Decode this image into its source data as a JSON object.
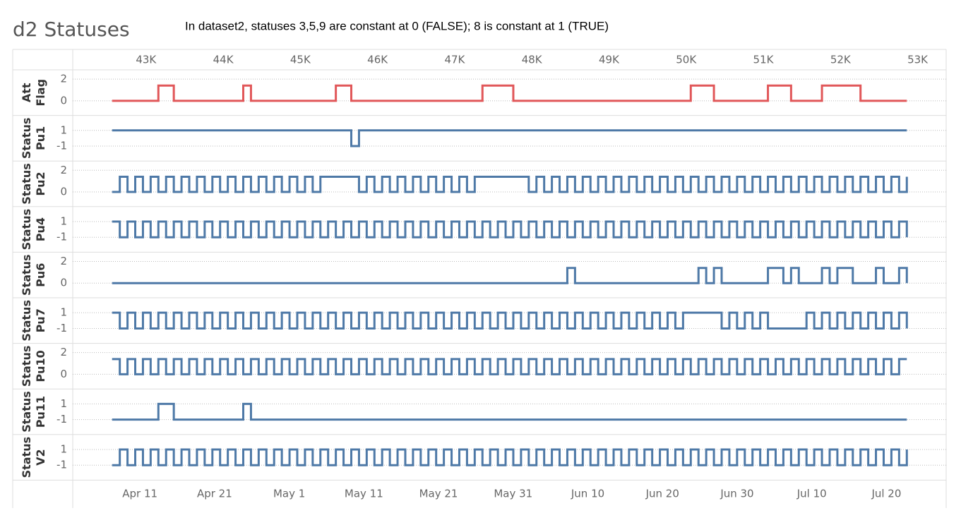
{
  "chart_data": {
    "type": "step",
    "title": "d2 Statuses",
    "annotation": "In dataset2,    statuses 3,5,9 are constant at 0 (FALSE);   8 is constant at 1 (TRUE)",
    "xlim": [
      42050,
      53370
    ],
    "xticks": [
      {
        "value": 43000,
        "label": "43K"
      },
      {
        "value": 44000,
        "label": "44K"
      },
      {
        "value": 45000,
        "label": "45K"
      },
      {
        "value": 46000,
        "label": "46K"
      },
      {
        "value": 47000,
        "label": "47K"
      },
      {
        "value": 48000,
        "label": "48K"
      },
      {
        "value": 49000,
        "label": "49K"
      },
      {
        "value": 50000,
        "label": "50K"
      },
      {
        "value": 51000,
        "label": "51K"
      },
      {
        "value": 52000,
        "label": "52K"
      },
      {
        "value": 53000,
        "label": "53K"
      }
    ],
    "x2lim": [
      "Apr 2",
      "Jul 28"
    ],
    "x2ticks": [
      "Apr 11",
      "Apr 21",
      "May 1",
      "May 11",
      "May 21",
      "May 31",
      "Jun 10",
      "Jun 20",
      "Jun 30",
      "Jul 10",
      "Jul 20"
    ],
    "x": [
      42560,
      42660,
      42760,
      42860,
      42960,
      43060,
      43160,
      43260,
      43360,
      43460,
      43560,
      43660,
      43760,
      43860,
      43960,
      44060,
      44160,
      44260,
      44360,
      44460,
      44560,
      44660,
      44760,
      44860,
      44960,
      45060,
      45160,
      45260,
      45360,
      45460,
      45560,
      45660,
      45760,
      45860,
      45960,
      46060,
      46160,
      46260,
      46360,
      46460,
      46560,
      46660,
      46760,
      46860,
      46960,
      47060,
      47160,
      47260,
      47360,
      47460,
      47560,
      47660,
      47760,
      47860,
      47960,
      48060,
      48160,
      48260,
      48360,
      48460,
      48560,
      48660,
      48760,
      48860,
      48960,
      49060,
      49160,
      49260,
      49360,
      49460,
      49560,
      49660,
      49760,
      49860,
      49960,
      50060,
      50160,
      50260,
      50360,
      50460,
      50560,
      50660,
      50760,
      50860,
      50960,
      51060,
      51160,
      51260,
      51360,
      51460,
      51560,
      51660,
      51760,
      51860,
      51960,
      52060,
      52160,
      52260,
      52360,
      52460,
      52560,
      52660,
      52760,
      52860
    ],
    "series": [
      {
        "name": "Att Flag",
        "color": "#e15759",
        "ylim": [
          -1.35,
          2.85
        ],
        "yticks": [
          0,
          2
        ],
        "values": [
          0,
          0,
          0,
          0,
          0,
          0,
          1.4,
          1.4,
          0,
          0,
          0,
          0,
          0,
          0,
          0,
          0,
          0,
          1.4,
          0,
          0,
          0,
          0,
          0,
          0,
          0,
          0,
          0,
          0,
          0,
          1.4,
          1.4,
          0,
          0,
          0,
          0,
          0,
          0,
          0,
          0,
          0,
          0,
          0,
          0,
          0,
          0,
          0,
          0,
          0,
          1.4,
          1.4,
          1.4,
          1.4,
          0,
          0,
          0,
          0,
          0,
          0,
          0,
          0,
          0,
          0,
          0,
          0,
          0,
          0,
          0,
          0,
          0,
          0,
          0,
          0,
          0,
          0,
          0,
          1.4,
          1.4,
          1.4,
          0,
          0,
          0,
          0,
          0,
          0,
          0,
          1.4,
          1.4,
          1.4,
          0,
          0,
          0,
          0,
          1.4,
          1.4,
          1.4,
          1.4,
          1.4,
          0,
          0,
          0,
          0,
          0,
          0,
          0
        ]
      },
      {
        "name": "Status Pu1",
        "color": "#4e79a7",
        "ylim": [
          -2.9,
          2.9
        ],
        "yticks": [
          1,
          -1
        ],
        "values": [
          1,
          1,
          1,
          1,
          1,
          1,
          1,
          1,
          1,
          1,
          1,
          1,
          1,
          1,
          1,
          1,
          1,
          1,
          1,
          1,
          1,
          1,
          1,
          1,
          1,
          1,
          1,
          1,
          1,
          1,
          1,
          -1,
          1,
          1,
          1,
          1,
          1,
          1,
          1,
          1,
          1,
          1,
          1,
          1,
          1,
          1,
          1,
          1,
          1,
          1,
          1,
          1,
          1,
          1,
          1,
          1,
          1,
          1,
          1,
          1,
          1,
          1,
          1,
          1,
          1,
          1,
          1,
          1,
          1,
          1,
          1,
          1,
          1,
          1,
          1,
          1,
          1,
          1,
          1,
          1,
          1,
          1,
          1,
          1,
          1,
          1,
          1,
          1,
          1,
          1,
          1,
          1,
          1,
          1,
          1,
          1,
          1,
          1,
          1,
          1,
          1,
          1,
          1,
          1
        ]
      },
      {
        "name": "Status Pu2",
        "color": "#4e79a7",
        "ylim": [
          -1.35,
          2.85
        ],
        "yticks": [
          2,
          0
        ],
        "values": [
          0,
          1.4,
          0,
          1.4,
          0,
          1.4,
          0,
          1.4,
          0,
          1.4,
          0,
          1.4,
          0,
          1.4,
          0,
          1.4,
          0,
          1.4,
          0,
          1.4,
          0,
          1.4,
          0,
          1.4,
          0,
          1.4,
          0,
          1.4,
          1.4,
          1.4,
          1.4,
          1.4,
          0,
          1.4,
          0,
          1.4,
          0,
          1.4,
          0,
          1.4,
          0,
          1.4,
          0,
          1.4,
          0,
          1.4,
          0,
          1.4,
          1.4,
          1.4,
          1.4,
          1.4,
          1.4,
          1.4,
          0,
          1.4,
          0,
          1.4,
          0,
          1.4,
          0,
          1.4,
          0,
          1.4,
          0,
          1.4,
          0,
          1.4,
          0,
          1.4,
          0,
          1.4,
          0,
          1.4,
          0,
          1.4,
          0,
          1.4,
          0,
          1.4,
          0,
          1.4,
          0,
          1.4,
          0,
          1.4,
          0,
          1.4,
          0,
          1.4,
          0,
          1.4,
          0,
          1.4,
          0,
          1.4,
          0,
          1.4,
          0,
          1.4,
          0,
          1.4,
          0,
          1.4
        ]
      },
      {
        "name": "Status Pu4",
        "color": "#4e79a7",
        "ylim": [
          -2.9,
          2.9
        ],
        "yticks": [
          1,
          -1
        ],
        "values": [
          1,
          -1,
          1,
          -1,
          1,
          -1,
          1,
          -1,
          1,
          -1,
          1,
          -1,
          1,
          -1,
          1,
          -1,
          1,
          -1,
          1,
          -1,
          1,
          -1,
          1,
          -1,
          1,
          -1,
          1,
          -1,
          1,
          -1,
          1,
          -1,
          1,
          -1,
          1,
          -1,
          1,
          -1,
          1,
          -1,
          1,
          -1,
          1,
          -1,
          1,
          -1,
          1,
          -1,
          1,
          -1,
          1,
          -1,
          1,
          -1,
          1,
          -1,
          1,
          -1,
          1,
          -1,
          1,
          -1,
          1,
          -1,
          1,
          -1,
          1,
          -1,
          1,
          -1,
          1,
          -1,
          1,
          -1,
          1,
          -1,
          1,
          -1,
          1,
          -1,
          1,
          -1,
          1,
          -1,
          1,
          -1,
          1,
          -1,
          1,
          -1,
          1,
          -1,
          1,
          -1,
          1,
          -1,
          1,
          -1,
          1,
          -1,
          1,
          -1,
          1,
          -1
        ]
      },
      {
        "name": "Status Pu6",
        "color": "#4e79a7",
        "ylim": [
          -1.35,
          2.85
        ],
        "yticks": [
          2,
          0
        ],
        "values": [
          0,
          0,
          0,
          0,
          0,
          0,
          0,
          0,
          0,
          0,
          0,
          0,
          0,
          0,
          0,
          0,
          0,
          0,
          0,
          0,
          0,
          0,
          0,
          0,
          0,
          0,
          0,
          0,
          0,
          0,
          0,
          0,
          0,
          0,
          0,
          0,
          0,
          0,
          0,
          0,
          0,
          0,
          0,
          0,
          0,
          0,
          0,
          0,
          0,
          0,
          0,
          0,
          0,
          0,
          0,
          0,
          0,
          0,
          0,
          1.4,
          0,
          0,
          0,
          0,
          0,
          0,
          0,
          0,
          0,
          0,
          0,
          0,
          0,
          0,
          0,
          0,
          1.4,
          0,
          1.4,
          0,
          0,
          0,
          0,
          0,
          0,
          1.4,
          1.4,
          0,
          1.4,
          0,
          0,
          0,
          1.4,
          0,
          1.4,
          1.4,
          0,
          0,
          0,
          1.4,
          0,
          0,
          1.4,
          0
        ]
      },
      {
        "name": "Status Pu7",
        "color": "#4e79a7",
        "ylim": [
          -2.9,
          2.9
        ],
        "yticks": [
          1,
          -1
        ],
        "values": [
          1,
          -1,
          1,
          -1,
          1,
          -1,
          1,
          -1,
          1,
          -1,
          1,
          -1,
          1,
          -1,
          1,
          -1,
          1,
          -1,
          1,
          -1,
          1,
          -1,
          1,
          -1,
          1,
          -1,
          1,
          -1,
          1,
          -1,
          1,
          -1,
          1,
          -1,
          1,
          -1,
          1,
          -1,
          1,
          -1,
          1,
          -1,
          1,
          -1,
          1,
          -1,
          1,
          -1,
          1,
          -1,
          1,
          -1,
          1,
          -1,
          1,
          -1,
          1,
          -1,
          1,
          -1,
          1,
          -1,
          1,
          -1,
          1,
          -1,
          1,
          -1,
          1,
          -1,
          1,
          -1,
          1,
          -1,
          1,
          1,
          1,
          1,
          1,
          -1,
          1,
          -1,
          1,
          -1,
          1,
          -1,
          -1,
          -1,
          -1,
          -1,
          1,
          -1,
          1,
          -1,
          1,
          -1,
          1,
          -1,
          1,
          -1,
          1,
          -1,
          1,
          -1
        ]
      },
      {
        "name": "Status Pu10",
        "color": "#4e79a7",
        "ylim": [
          -1.35,
          2.85
        ],
        "yticks": [
          2,
          0
        ],
        "values": [
          1.4,
          0,
          1.4,
          0,
          1.4,
          0,
          1.4,
          0,
          1.4,
          0,
          1.4,
          0,
          1.4,
          0,
          1.4,
          0,
          1.4,
          0,
          1.4,
          0,
          1.4,
          0,
          1.4,
          0,
          1.4,
          0,
          1.4,
          0,
          1.4,
          0,
          1.4,
          0,
          1.4,
          0,
          1.4,
          0,
          1.4,
          0,
          1.4,
          0,
          1.4,
          0,
          1.4,
          0,
          1.4,
          0,
          1.4,
          0,
          1.4,
          0,
          1.4,
          0,
          1.4,
          0,
          1.4,
          0,
          1.4,
          0,
          1.4,
          0,
          1.4,
          0,
          1.4,
          0,
          1.4,
          0,
          1.4,
          0,
          1.4,
          0,
          1.4,
          0,
          1.4,
          0,
          1.4,
          0,
          1.4,
          0,
          1.4,
          0,
          1.4,
          0,
          1.4,
          0,
          1.4,
          0,
          1.4,
          0,
          1.4,
          0,
          1.4,
          0,
          1.4,
          0,
          1.4,
          0,
          1.4,
          0,
          1.4,
          0,
          1.4,
          0,
          1.4,
          1.4
        ]
      },
      {
        "name": "Status Pu11",
        "color": "#4e79a7",
        "ylim": [
          -2.9,
          2.9
        ],
        "yticks": [
          1,
          -1
        ],
        "values": [
          -1,
          -1,
          -1,
          -1,
          -1,
          -1,
          1,
          1,
          -1,
          -1,
          -1,
          -1,
          -1,
          -1,
          -1,
          -1,
          -1,
          1,
          -1,
          -1,
          -1,
          -1,
          -1,
          -1,
          -1,
          -1,
          -1,
          -1,
          -1,
          -1,
          -1,
          -1,
          -1,
          -1,
          -1,
          -1,
          -1,
          -1,
          -1,
          -1,
          -1,
          -1,
          -1,
          -1,
          -1,
          -1,
          -1,
          -1,
          -1,
          -1,
          -1,
          -1,
          -1,
          -1,
          -1,
          -1,
          -1,
          -1,
          -1,
          -1,
          -1,
          -1,
          -1,
          -1,
          -1,
          -1,
          -1,
          -1,
          -1,
          -1,
          -1,
          -1,
          -1,
          -1,
          -1,
          -1,
          -1,
          -1,
          -1,
          -1,
          -1,
          -1,
          -1,
          -1,
          -1,
          -1,
          -1,
          -1,
          -1,
          -1,
          -1,
          -1,
          -1,
          -1,
          -1,
          -1,
          -1,
          -1,
          -1,
          -1,
          -1,
          -1,
          -1,
          -1
        ]
      },
      {
        "name": "Status V2",
        "color": "#4e79a7",
        "ylim": [
          -2.9,
          2.9
        ],
        "yticks": [
          1,
          -1
        ],
        "values": [
          -1,
          1,
          -1,
          1,
          -1,
          1,
          -1,
          1,
          -1,
          1,
          -1,
          1,
          -1,
          1,
          -1,
          1,
          -1,
          1,
          -1,
          1,
          -1,
          1,
          -1,
          1,
          -1,
          1,
          -1,
          1,
          -1,
          1,
          -1,
          1,
          -1,
          1,
          -1,
          1,
          -1,
          1,
          -1,
          1,
          -1,
          1,
          -1,
          1,
          -1,
          1,
          -1,
          1,
          -1,
          1,
          -1,
          1,
          -1,
          1,
          -1,
          1,
          -1,
          1,
          -1,
          1,
          -1,
          1,
          -1,
          1,
          -1,
          1,
          -1,
          1,
          -1,
          1,
          -1,
          1,
          -1,
          1,
          -1,
          1,
          -1,
          1,
          -1,
          1,
          -1,
          1,
          -1,
          1,
          -1,
          1,
          -1,
          1,
          -1,
          1,
          -1,
          1,
          -1,
          1,
          -1,
          1,
          -1,
          1,
          -1,
          1,
          -1,
          1,
          -1,
          1
        ]
      }
    ]
  }
}
